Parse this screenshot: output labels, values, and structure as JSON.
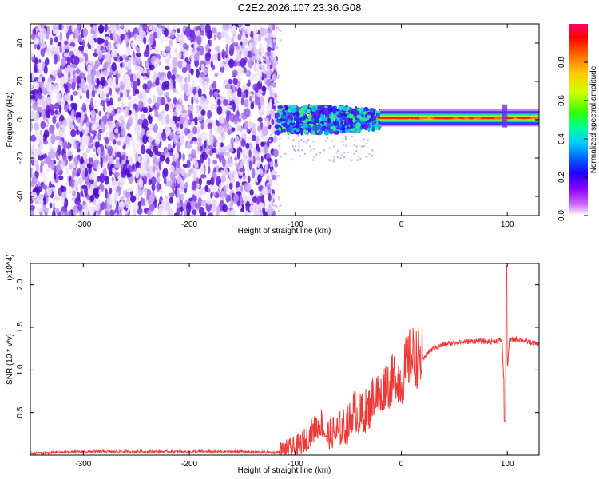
{
  "title": "C2E2.2026.107.23.36.G08",
  "colors": {
    "snr_line": "#ee3a36",
    "spectrogram_low": "#d9c4f5",
    "spectrogram_mid": "#6a1fe0",
    "colorbar_stops": [
      "#ffffff",
      "#cc66ff",
      "#8800ff",
      "#2200ff",
      "#0066ff",
      "#00ccff",
      "#00ff99",
      "#33ff00",
      "#ccff00",
      "#ffcc00",
      "#ff6600",
      "#ff0000",
      "#ff0066"
    ]
  },
  "chart_data": [
    {
      "type": "heatmap",
      "xlabel": "Height of straight line (km)",
      "ylabel": "Frequency (Hz)",
      "xlim": [
        -350,
        130
      ],
      "ylim": [
        -50,
        50
      ],
      "xticks": [
        -300,
        -200,
        -100,
        0,
        100
      ],
      "yticks": [
        -40,
        -20,
        0,
        20,
        40
      ],
      "colorbar": {
        "label": "Normalized spectral amplitude",
        "range": [
          0.0,
          1.0
        ],
        "ticks": [
          0.0,
          0.2,
          0.4,
          0.6,
          0.8
        ]
      },
      "regions": [
        {
          "x_range": [
            -350,
            -118
          ],
          "freq_range": [
            -50,
            50
          ],
          "amplitude": "0.0-0.2 noise"
        },
        {
          "x_range": [
            -118,
            -20
          ],
          "freq_center": 0,
          "freq_halfwidth": 7,
          "amplitude": "0.2-0.5"
        },
        {
          "x_range": [
            -20,
            130
          ],
          "freq_center": 1,
          "freq_halfwidth": 2,
          "amplitude": "0.6-1.0"
        }
      ]
    },
    {
      "type": "line",
      "xlabel": "Height of straight line (km)",
      "ylabel": "SNR (10 * v/v)",
      "y_multiplier": "(x10^4)",
      "xlim": [
        -350,
        130
      ],
      "ylim": [
        0,
        2.25
      ],
      "xticks": [
        -300,
        -200,
        -100,
        0,
        100
      ],
      "yticks": [
        0.5,
        1.0,
        1.5,
        2.0
      ],
      "series": [
        {
          "x": [
            -350,
            -300,
            -250,
            -200,
            -150,
            -120,
            -100,
            -90,
            -80,
            -75,
            -70,
            -60,
            -50,
            -45,
            -40,
            -30,
            -25,
            -20,
            -15,
            -10,
            -5,
            0,
            5,
            10,
            15,
            20,
            25,
            30,
            40,
            50,
            60,
            70,
            80,
            90,
            95,
            98,
            99,
            100,
            102,
            110,
            120,
            130
          ],
          "y": [
            0.02,
            0.04,
            0.04,
            0.04,
            0.04,
            0.03,
            0.06,
            0.15,
            0.3,
            0.35,
            0.2,
            0.25,
            0.3,
            0.5,
            0.4,
            0.5,
            0.7,
            0.6,
            0.8,
            0.75,
            0.9,
            0.8,
            1.0,
            1.1,
            1.05,
            1.1,
            1.2,
            1.25,
            1.3,
            1.32,
            1.33,
            1.34,
            1.33,
            1.34,
            1.35,
            0.5,
            2.2,
            1.0,
            1.35,
            1.36,
            1.33,
            1.3
          ]
        }
      ]
    }
  ]
}
